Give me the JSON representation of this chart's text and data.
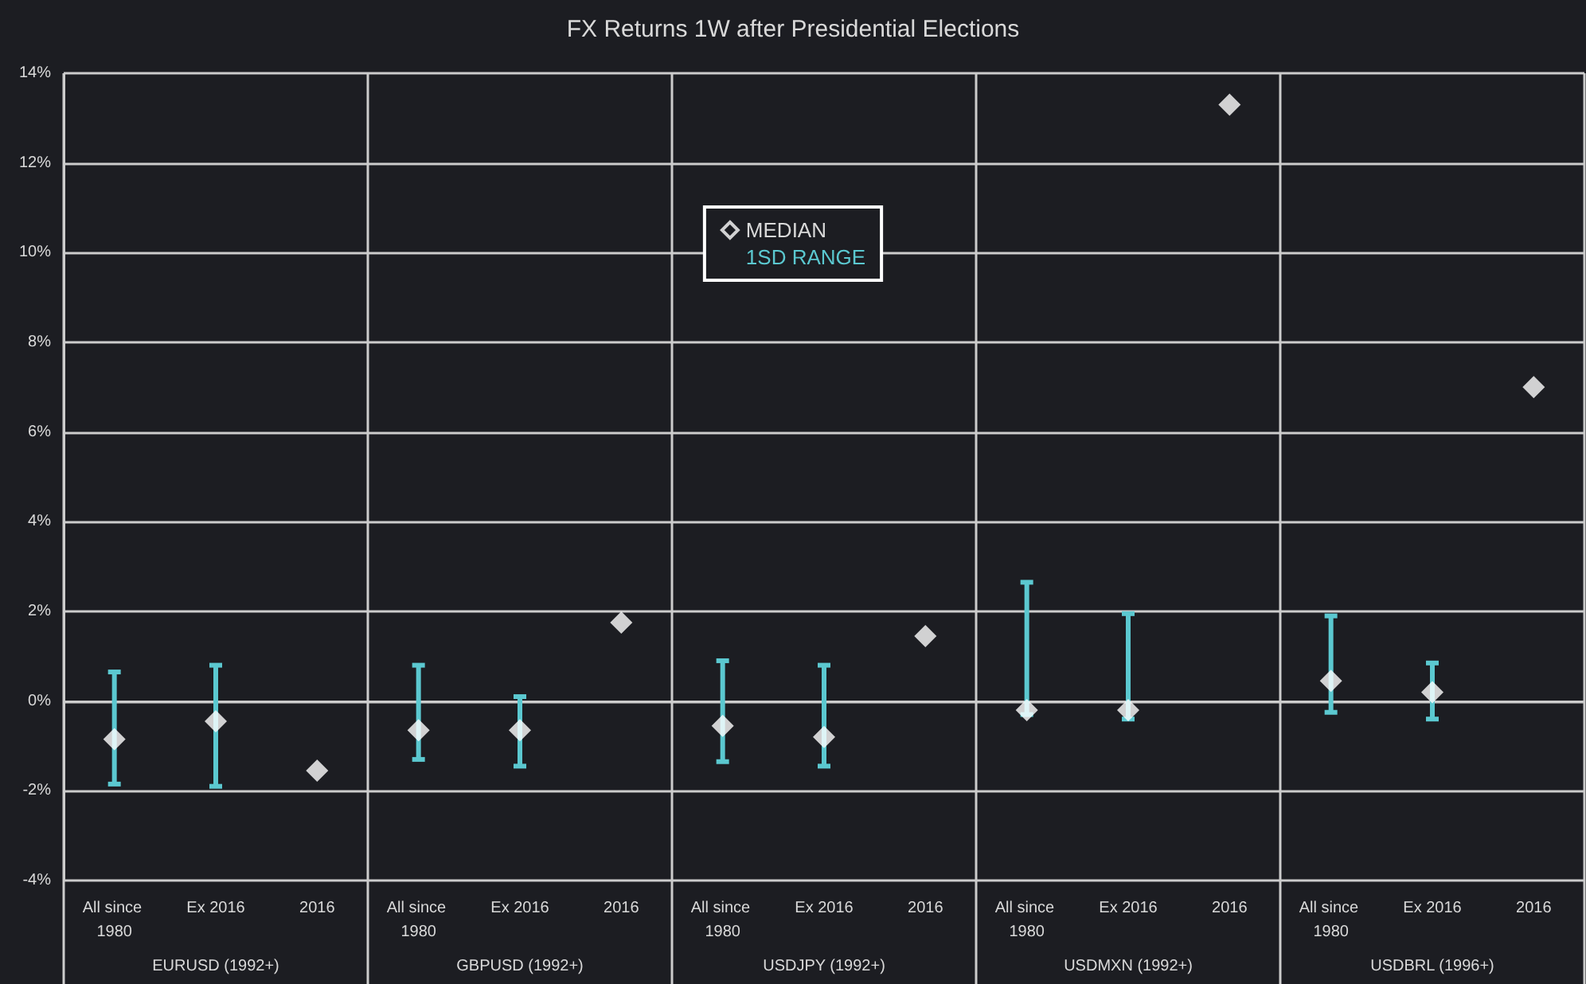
{
  "chart_data": {
    "type": "scatter",
    "title": "FX Returns 1W after Presidential Elections",
    "categories": [
      "All since 1980",
      "Ex 2016",
      "2016",
      "All since 1980",
      "Ex 2016",
      "2016",
      "All since 1980",
      "Ex 2016",
      "2016",
      "All since 1980",
      "Ex 2016",
      "2016",
      "All since 1980",
      "Ex 2016",
      "2016"
    ],
    "annotations": [
      "EURUSD (1992+)",
      "GBPUSD (1992+)",
      "USDJPY (1992+)",
      "USDMXN (1992+)",
      "USDBRL (1996+)"
    ],
    "series": [
      {
        "name": "MEDIAN",
        "color": "#ffffff",
        "marker": "diamond",
        "values": [
          -0.85,
          -0.45,
          -1.55,
          -0.65,
          -0.65,
          1.75,
          -0.55,
          -0.8,
          1.45,
          -0.2,
          -0.2,
          13.3,
          0.45,
          0.2,
          7.0
        ],
        "errors": [
          [
            -1.85,
            0.65
          ],
          [
            -1.9,
            0.8
          ],
          null,
          [
            -1.3,
            0.8
          ],
          [
            -1.45,
            0.1
          ],
          null,
          [
            -1.35,
            0.9
          ],
          [
            -1.45,
            0.8
          ],
          null,
          [
            -0.3,
            2.65
          ],
          [
            -0.4,
            1.95
          ],
          null,
          [
            -0.25,
            1.9
          ],
          [
            -0.4,
            0.85
          ],
          null
        ]
      },
      {
        "name": "1SD RANGE",
        "color": "#5bc8d0",
        "marker": "none",
        "values": [
          null,
          null,
          null,
          null,
          null,
          null,
          null,
          null,
          null,
          null,
          null,
          null,
          null,
          null,
          null
        ]
      }
    ],
    "ylim": [
      -4,
      14
    ],
    "yticks": [
      {
        "value": -4,
        "label": "-4%"
      },
      {
        "value": -2,
        "label": "-2%"
      },
      {
        "value": 0,
        "label": "0%"
      },
      {
        "value": 2,
        "label": "2%"
      },
      {
        "value": 4,
        "label": "4%"
      },
      {
        "value": 6,
        "label": "6%"
      },
      {
        "value": 8,
        "label": "8%"
      },
      {
        "value": 10,
        "label": "10%"
      },
      {
        "value": 12,
        "label": "12%"
      },
      {
        "value": 14,
        "label": "14%"
      }
    ],
    "grid": "y",
    "legend": "top"
  }
}
